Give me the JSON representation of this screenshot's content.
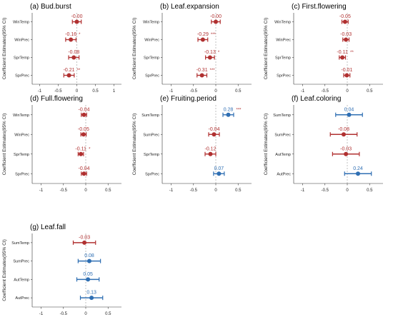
{
  "chart_data": [
    {
      "type": "scatter",
      "title": "(a) Bud.burst",
      "ylabel": "Coefficient Estimates(95% CI)",
      "xlim": [
        -1.2,
        1.2
      ],
      "xticks": [
        "-1",
        "-0.5",
        "0",
        "0.5",
        "1"
      ],
      "rows": [
        {
          "name": "WinTemp",
          "est": -0.0,
          "lo": -0.12,
          "hi": 0.12,
          "label": "-0.00",
          "sig": "",
          "color": "#b03030"
        },
        {
          "name": "WinPrec",
          "est": -0.16,
          "lo": -0.3,
          "hi": -0.02,
          "label": "-0.16",
          "sig": "*",
          "color": "#b03030"
        },
        {
          "name": "SprTemp",
          "est": -0.08,
          "lo": -0.22,
          "hi": 0.06,
          "label": "-0.08",
          "sig": "",
          "color": "#b03030"
        },
        {
          "name": "SprPrec",
          "est": -0.21,
          "lo": -0.35,
          "hi": -0.07,
          "label": "-0.21",
          "sig": "**",
          "color": "#b03030"
        }
      ]
    },
    {
      "type": "scatter",
      "title": "(b) Leaf.expansion",
      "ylabel": "Coefficient Estimates(95% CI)",
      "xlim": [
        -1.2,
        0.8
      ],
      "xticks": [
        "-1",
        "-0.5",
        "0",
        "0.5"
      ],
      "rows": [
        {
          "name": "WinTemp",
          "est": -0.0,
          "lo": -0.1,
          "hi": 0.1,
          "label": "-0.00",
          "sig": "",
          "color": "#b03030"
        },
        {
          "name": "WinPrec",
          "est": -0.29,
          "lo": -0.4,
          "hi": -0.18,
          "label": "-0.29",
          "sig": "***",
          "color": "#b03030"
        },
        {
          "name": "SprTemp",
          "est": -0.13,
          "lo": -0.23,
          "hi": -0.03,
          "label": "-0.13",
          "sig": "*",
          "color": "#b03030"
        },
        {
          "name": "SprPrec",
          "est": -0.31,
          "lo": -0.42,
          "hi": -0.2,
          "label": "-0.31",
          "sig": "***",
          "color": "#b03030"
        }
      ]
    },
    {
      "type": "scatter",
      "title": "(c) First.flowering",
      "ylabel": "Coefficient Estimates(95% CI)",
      "xlim": [
        -1.2,
        0.8
      ],
      "xticks": [
        "-1",
        "-0.5",
        "0",
        "0.5"
      ],
      "rows": [
        {
          "name": "WinTemp",
          "est": -0.05,
          "lo": -0.12,
          "hi": 0.02,
          "label": "-0.05",
          "sig": "",
          "color": "#b03030"
        },
        {
          "name": "WinPrec",
          "est": -0.03,
          "lo": -0.1,
          "hi": 0.04,
          "label": "-0.03",
          "sig": "",
          "color": "#b03030"
        },
        {
          "name": "SprTemp",
          "est": -0.11,
          "lo": -0.18,
          "hi": -0.04,
          "label": "-0.11",
          "sig": "**",
          "color": "#b03030"
        },
        {
          "name": "SprPrec",
          "est": -0.01,
          "lo": -0.08,
          "hi": 0.06,
          "label": "-0.01",
          "sig": "",
          "color": "#b03030"
        }
      ]
    },
    {
      "type": "scatter",
      "title": "(d) Full.flowering",
      "ylabel": "Coefficient Estimates(95% CI)",
      "xlim": [
        -1.2,
        0.8
      ],
      "xticks": [
        "-1",
        "-0.5",
        "0",
        "0.5"
      ],
      "rows": [
        {
          "name": "WinTemp",
          "est": -0.04,
          "lo": -0.1,
          "hi": 0.02,
          "label": "-0.04",
          "sig": "",
          "color": "#b03030"
        },
        {
          "name": "WinPrec",
          "est": -0.05,
          "lo": -0.11,
          "hi": 0.01,
          "label": "-0.05",
          "sig": "",
          "color": "#b03030"
        },
        {
          "name": "SprTemp",
          "est": -0.11,
          "lo": -0.17,
          "hi": -0.05,
          "label": "-0.11",
          "sig": "*",
          "color": "#b03030"
        },
        {
          "name": "SprPrec",
          "est": -0.04,
          "lo": -0.1,
          "hi": 0.02,
          "label": "-0.04",
          "sig": "",
          "color": "#b03030"
        }
      ]
    },
    {
      "type": "scatter",
      "title": "(e) Fruiting.period",
      "ylabel": "Coefficient Estimates(95% CI)",
      "xlim": [
        -1.2,
        0.8
      ],
      "xticks": [
        "-1",
        "-0.5",
        "0",
        "0.5"
      ],
      "rows": [
        {
          "name": "SumTemp",
          "est": 0.28,
          "lo": 0.16,
          "hi": 0.4,
          "label": "0.28",
          "sig": "***",
          "color": "#2f6fb3"
        },
        {
          "name": "SumPrec",
          "est": -0.04,
          "lo": -0.16,
          "hi": 0.08,
          "label": "-0.04",
          "sig": "",
          "color": "#b03030"
        },
        {
          "name": "SprTemp",
          "est": -0.12,
          "lo": -0.24,
          "hi": 0.0,
          "label": "-0.12",
          "sig": "",
          "color": "#b03030"
        },
        {
          "name": "SprPrec",
          "est": 0.07,
          "lo": -0.05,
          "hi": 0.19,
          "label": "0.07",
          "sig": "",
          "color": "#2f6fb3"
        }
      ]
    },
    {
      "type": "scatter",
      "title": "(f) Leaf.coloring",
      "ylabel": "Coefficient Estimates(95% CI)",
      "xlim": [
        -1.2,
        0.8
      ],
      "xticks": [
        "-1",
        "-0.5",
        "0",
        "0.5"
      ],
      "rows": [
        {
          "name": "SumTemp",
          "est": 0.04,
          "lo": -0.26,
          "hi": 0.34,
          "label": "0.04",
          "sig": "",
          "color": "#2f6fb3"
        },
        {
          "name": "SumPrec",
          "est": -0.08,
          "lo": -0.38,
          "hi": 0.22,
          "label": "-0.08",
          "sig": "",
          "color": "#b03030"
        },
        {
          "name": "AutTemp",
          "est": -0.03,
          "lo": -0.33,
          "hi": 0.27,
          "label": "-0.03",
          "sig": "",
          "color": "#b03030"
        },
        {
          "name": "AutPrec",
          "est": 0.24,
          "lo": -0.06,
          "hi": 0.54,
          "label": "0.24",
          "sig": "",
          "color": "#2f6fb3"
        }
      ]
    },
    {
      "type": "scatter",
      "title": "(g) Leaf.fall",
      "ylabel": "Coefficient Estimates(95% CI)",
      "xlim": [
        -1.2,
        0.8
      ],
      "xticks": [
        "-1",
        "-0.5",
        "0",
        "0.5"
      ],
      "rows": [
        {
          "name": "SumTemp",
          "est": -0.03,
          "lo": -0.28,
          "hi": 0.22,
          "label": "-0.03",
          "sig": "",
          "color": "#b03030"
        },
        {
          "name": "SumPrec",
          "est": 0.08,
          "lo": -0.17,
          "hi": 0.33,
          "label": "0.08",
          "sig": "",
          "color": "#2f6fb3"
        },
        {
          "name": "AutTemp",
          "est": 0.05,
          "lo": -0.2,
          "hi": 0.3,
          "label": "0.05",
          "sig": "",
          "color": "#2f6fb3"
        },
        {
          "name": "AutPrec",
          "est": 0.13,
          "lo": -0.12,
          "hi": 0.38,
          "label": "0.13",
          "sig": "",
          "color": "#2f6fb3"
        }
      ]
    }
  ]
}
